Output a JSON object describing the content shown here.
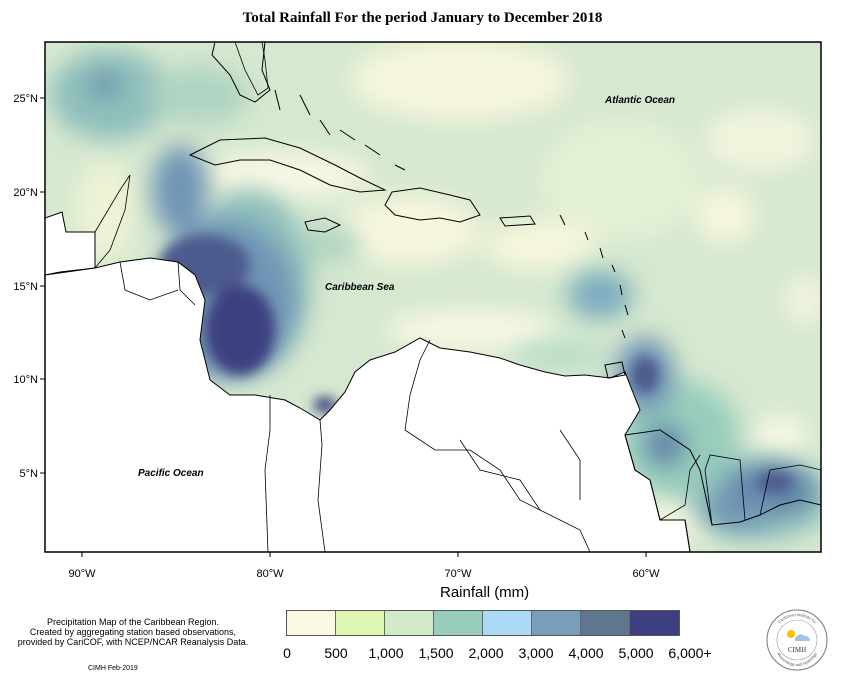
{
  "title": "Total Rainfall For the period January to December 2018",
  "axes": {
    "lat_labels": [
      "25°N",
      "20°N",
      "15°N",
      "10°N",
      "5°N"
    ],
    "lon_labels": [
      "90°W",
      "80°W",
      "70°W",
      "60°W"
    ]
  },
  "map_labels": {
    "atlantic": "Atlantic Ocean",
    "caribbean": "Caribbean Sea",
    "pacific": "Pacific Ocean"
  },
  "legend": {
    "title": "Rainfall (mm)",
    "ticks": [
      "0",
      "500",
      "1,000",
      "1,500",
      "2,000",
      "3,000",
      "4,000",
      "5,000",
      "6,000+"
    ],
    "colors": [
      "#fbf8e3",
      "#dff7b3",
      "#d1ebc9",
      "#98cdbc",
      "#acd9f5",
      "#789ebc",
      "#5e778e",
      "#3d3f80"
    ]
  },
  "note": {
    "line1": "Precipitation Map of the Caribbean Region.",
    "line2": "Created by aggregating station based observations,",
    "line3": "provided by CariCOF, with NCEP/NCAR Reanalysis Data."
  },
  "credit": "CIMH Feb-2019",
  "logo": {
    "abbr": "CIMH",
    "ring_text_top": "Caribbean Institute for",
    "ring_text_bottom": "Meteorology and Hydrology"
  }
}
